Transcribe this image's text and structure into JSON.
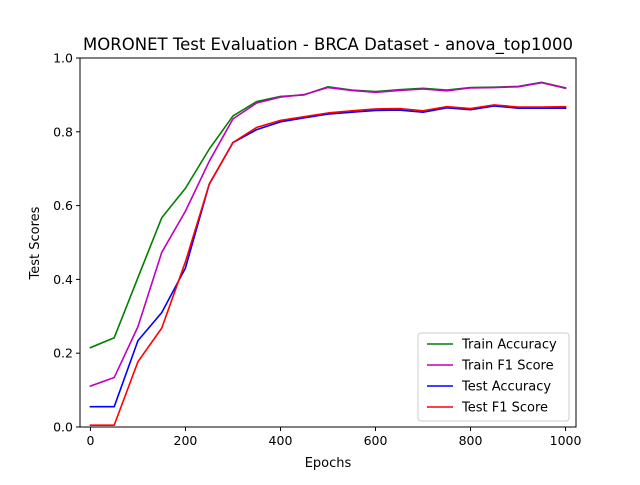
{
  "chart_data": {
    "type": "line",
    "title": "MORONET Test Evaluation - BRCA Dataset - anova_top1000",
    "xlabel": "Epochs",
    "ylabel": "Test Scores",
    "xlim": [
      -22,
      1022
    ],
    "ylim": [
      0,
      1.0
    ],
    "xticks": [
      0,
      200,
      400,
      600,
      800,
      1000
    ],
    "yticks": [
      0.0,
      0.2,
      0.4,
      0.6,
      0.8,
      1.0
    ],
    "xtick_labels": [
      "0",
      "200",
      "400",
      "600",
      "800",
      "1000"
    ],
    "ytick_labels": [
      "0.0",
      "0.2",
      "0.4",
      "0.6",
      "0.8",
      "1.0"
    ],
    "grid": false,
    "legend_position": "lower-right",
    "x": [
      0,
      50,
      100,
      150,
      200,
      250,
      300,
      350,
      400,
      450,
      500,
      550,
      600,
      650,
      700,
      750,
      800,
      850,
      900,
      950,
      1000
    ],
    "series": [
      {
        "name": "Train Accuracy",
        "color": "#008000",
        "values": [
          0.215,
          0.242,
          0.405,
          0.567,
          0.647,
          0.753,
          0.843,
          0.882,
          0.896,
          0.9,
          0.922,
          0.913,
          0.909,
          0.914,
          0.918,
          0.913,
          0.92,
          0.921,
          0.923,
          0.934,
          0.919
        ]
      },
      {
        "name": "Train F1 Score",
        "color": "#bf00bf",
        "values": [
          0.111,
          0.134,
          0.272,
          0.473,
          0.585,
          0.72,
          0.835,
          0.878,
          0.894,
          0.901,
          0.92,
          0.912,
          0.907,
          0.912,
          0.916,
          0.911,
          0.919,
          0.92,
          0.922,
          0.933,
          0.918
        ]
      },
      {
        "name": "Test Accuracy",
        "color": "#0000ff",
        "values": [
          0.055,
          0.055,
          0.234,
          0.31,
          0.431,
          0.658,
          0.771,
          0.806,
          0.827,
          0.838,
          0.848,
          0.853,
          0.858,
          0.859,
          0.853,
          0.865,
          0.86,
          0.87,
          0.864,
          0.864,
          0.864
        ]
      },
      {
        "name": "Test F1 Score",
        "color": "#ff0000",
        "values": [
          0.005,
          0.005,
          0.177,
          0.268,
          0.448,
          0.658,
          0.771,
          0.812,
          0.831,
          0.841,
          0.851,
          0.857,
          0.862,
          0.863,
          0.857,
          0.868,
          0.863,
          0.873,
          0.867,
          0.867,
          0.868
        ]
      }
    ]
  }
}
